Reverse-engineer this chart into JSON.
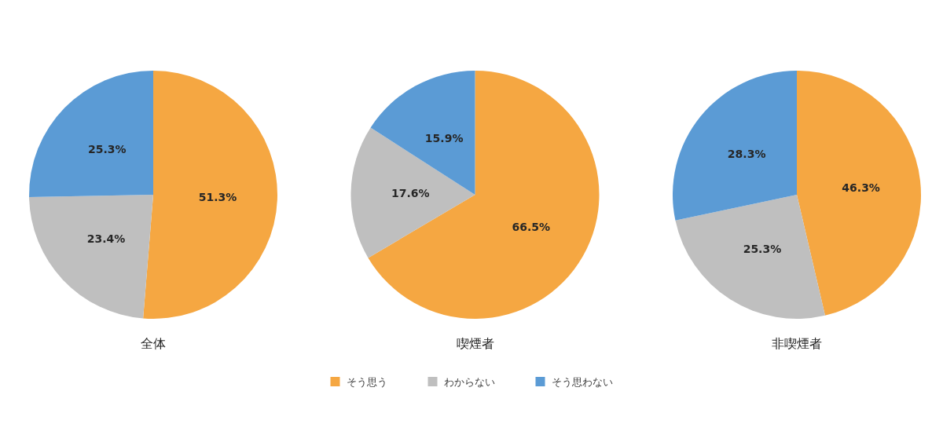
{
  "chart_data": [
    {
      "type": "pie",
      "title": "全体",
      "categories": [
        null,
        null,
        null
      ],
      "values": [
        51.3,
        23.4,
        25.3
      ],
      "colors": [
        "#f5a742",
        "#bfbfbf",
        "#5b9bd5"
      ],
      "value_labels": [
        "51.3%",
        "23.4%",
        "25.3%"
      ]
    },
    {
      "type": "pie",
      "title": "喫煙者",
      "categories": [
        "そう思う",
        "わからない",
        "そう思わない"
      ],
      "values": [
        66.5,
        17.6,
        15.9
      ],
      "colors": [
        "#f5a742",
        "#bfbfbf",
        "#5b9bd5"
      ],
      "value_labels": [
        "66.5%",
        "17.6%",
        "15.9%"
      ],
      "legend": "bottom"
    },
    {
      "type": "pie",
      "title": "非喫煙者",
      "categories": [
        null,
        null,
        null
      ],
      "values": [
        46.3,
        25.3,
        28.3
      ],
      "colors": [
        "#f5a742",
        "#bfbfbf",
        "#5b9bd5"
      ],
      "value_labels": [
        "46.3%",
        "25.3%",
        "28.3%"
      ]
    }
  ]
}
